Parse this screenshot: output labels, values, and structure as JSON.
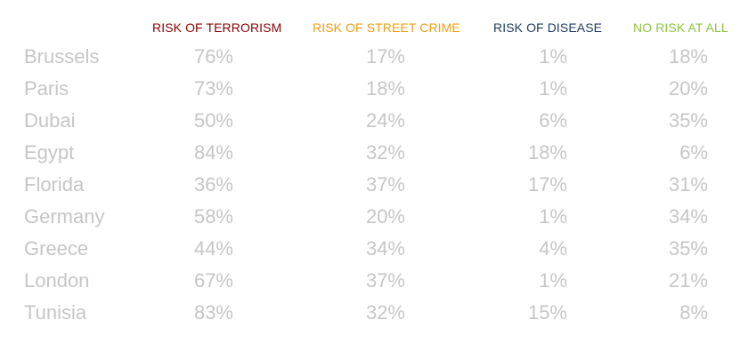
{
  "chart_data": {
    "type": "table",
    "columns": [
      {
        "label": "RISK OF TERRORISM",
        "color": "#8b0000"
      },
      {
        "label": "RISK OF STREET CRIME",
        "color": "#f39c12"
      },
      {
        "label": "RISK OF DISEASE",
        "color": "#1f3a5f"
      },
      {
        "label": "NO RISK AT ALL",
        "color": "#8dc63f"
      }
    ],
    "rows": [
      {
        "label": "Brussels",
        "values": [
          "76%",
          "17%",
          "1%",
          "18%"
        ]
      },
      {
        "label": "Paris",
        "values": [
          "73%",
          "18%",
          "1%",
          "20%"
        ]
      },
      {
        "label": "Dubai",
        "values": [
          "50%",
          "24%",
          "6%",
          "35%"
        ]
      },
      {
        "label": "Egypt",
        "values": [
          "84%",
          "32%",
          "18%",
          "6%"
        ]
      },
      {
        "label": "Florida",
        "values": [
          "36%",
          "37%",
          "17%",
          "31%"
        ]
      },
      {
        "label": "Germany",
        "values": [
          "58%",
          "20%",
          "1%",
          "34%"
        ]
      },
      {
        "label": "Greece",
        "values": [
          "44%",
          "34%",
          "4%",
          "35%"
        ]
      },
      {
        "label": "London",
        "values": [
          "67%",
          "37%",
          "1%",
          "21%"
        ]
      },
      {
        "label": "Tunisia",
        "values": [
          "83%",
          "32%",
          "15%",
          "8%"
        ]
      }
    ]
  }
}
